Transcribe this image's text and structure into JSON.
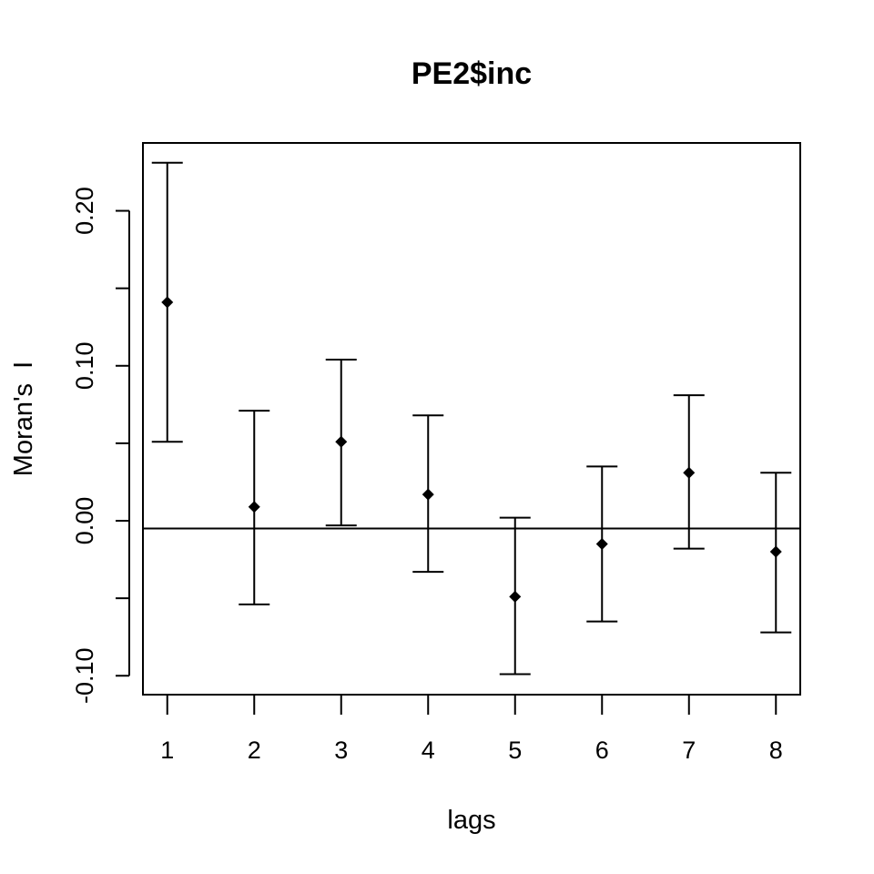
{
  "chart_data": {
    "type": "scatter",
    "title": "PE2$inc",
    "xlabel": "lags",
    "ylabel": "Moran's  I",
    "x": [
      1,
      2,
      3,
      4,
      5,
      6,
      7,
      8
    ],
    "estimate": [
      0.141,
      0.009,
      0.051,
      0.017,
      -0.049,
      -0.015,
      0.031,
      -0.02
    ],
    "lower": [
      0.051,
      -0.054,
      -0.003,
      -0.033,
      -0.099,
      -0.065,
      -0.018,
      -0.072
    ],
    "upper": [
      0.231,
      0.071,
      0.104,
      0.068,
      0.002,
      0.035,
      0.081,
      0.031
    ],
    "reference_line": -0.005,
    "xticks": [
      "1",
      "2",
      "3",
      "4",
      "5",
      "6",
      "7",
      "8"
    ],
    "yticks": [
      -0.1,
      -0.05,
      0.0,
      0.05,
      0.1,
      0.15,
      0.2
    ],
    "ytick_labels": [
      "-0.10",
      "",
      "0.00",
      "",
      "0.10",
      "",
      "0.20"
    ],
    "xlim": [
      0.72,
      8.28
    ],
    "ylim": [
      -0.1122,
      0.2438
    ],
    "grid": false,
    "legend": "none",
    "colors": {
      "points": "#000000",
      "errorbars": "#000000",
      "axes": "#000000",
      "background": "#ffffff"
    }
  }
}
